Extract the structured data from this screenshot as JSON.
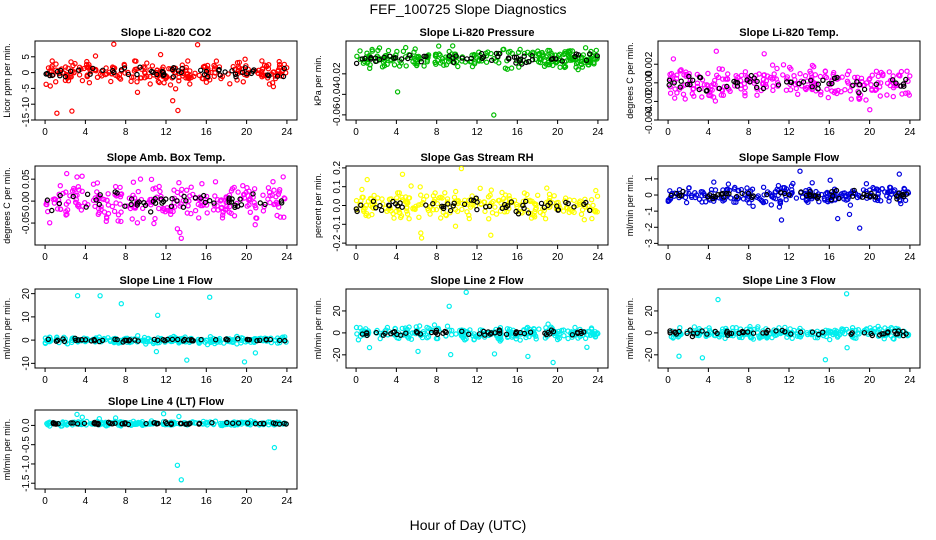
{
  "page_title": "FEF_100725  Slope Diagnostics",
  "x_axis_title": "Hour of Day (UTC)",
  "chart_data": [
    {
      "type": "scatter",
      "title": "Slope Li-820 CO2",
      "ylabel": "Licor ppm per min.",
      "xlim": [
        -1,
        25
      ],
      "ylim": [
        -15,
        10
      ],
      "xticks": [
        0,
        4,
        8,
        12,
        16,
        20,
        24
      ],
      "yticks": [
        5,
        0,
        -5,
        -10,
        -15
      ],
      "yticklabels": [
        "5",
        "0",
        "-5",
        "-10",
        "-15"
      ],
      "colors": [
        "#ff0000",
        "#000000"
      ],
      "summary": {
        "center": 0,
        "spread": 2.5,
        "extremes": [
          -13,
          9
        ]
      }
    },
    {
      "type": "scatter",
      "title": "Slope Li-820 Pressure",
      "ylabel": "kPa per min.",
      "xlim": [
        -1,
        25
      ],
      "ylim": [
        -0.065,
        0.012
      ],
      "xticks": [
        0,
        4,
        8,
        12,
        16,
        20,
        24
      ],
      "yticks": [
        -0.02,
        -0.04,
        -0.06
      ],
      "yticklabels": [
        "-0.02",
        "-0.04",
        "-0.06"
      ],
      "colors": [
        "#00bb00",
        "#000000"
      ],
      "summary": {
        "center": -0.005,
        "spread": 0.007,
        "extremes": [
          -0.058,
          0.008
        ]
      }
    },
    {
      "type": "scatter",
      "title": "Slope Li-820 Temp.",
      "ylabel": "degrees C per min.",
      "xlim": [
        -1,
        25
      ],
      "ylim": [
        -0.004,
        0.0045
      ],
      "xticks": [
        0,
        4,
        8,
        12,
        16,
        20,
        24
      ],
      "yticks": [
        0.002,
        0,
        -0.002,
        -0.004
      ],
      "yticklabels": [
        "0.002",
        "0.000",
        "-0.002",
        "-0.004"
      ],
      "colors": [
        "#ff00ff",
        "#000000"
      ],
      "summary": {
        "center": 0,
        "spread": 0.0012,
        "extremes": [
          -0.0035,
          0.0035
        ]
      }
    },
    {
      "type": "scatter",
      "title": "Slope Amb. Box Temp.",
      "ylabel": "degrees C per min.",
      "xlim": [
        -1,
        25
      ],
      "ylim": [
        -0.1,
        0.08
      ],
      "xticks": [
        0,
        4,
        8,
        12,
        16,
        20,
        24
      ],
      "yticks": [
        0.05,
        0,
        -0.05
      ],
      "yticklabels": [
        "0.05",
        "0.00",
        "-0.05"
      ],
      "colors": [
        "#ff00ff",
        "#000000"
      ],
      "summary": {
        "center": 0,
        "spread": 0.03,
        "extremes": [
          -0.09,
          0.07
        ]
      }
    },
    {
      "type": "scatter",
      "title": "Slope Gas Stream RH",
      "ylabel": "percent per min.",
      "xlim": [
        -1,
        25
      ],
      "ylim": [
        -0.21,
        0.21
      ],
      "xticks": [
        0,
        4,
        8,
        12,
        16,
        20,
        24
      ],
      "yticks": [
        0.2,
        0.1,
        0,
        -0.1,
        -0.2
      ],
      "yticklabels": [
        "0.2",
        "0.1",
        "0.0",
        "-0.1",
        "-0.2"
      ],
      "colors": [
        "#ffff00",
        "#000000"
      ],
      "summary": {
        "center": 0,
        "spread": 0.05,
        "extremes": [
          -0.2,
          0.2
        ]
      }
    },
    {
      "type": "scatter",
      "title": "Slope Sample Flow",
      "ylabel": "ml/min per min.",
      "xlim": [
        -1,
        25
      ],
      "ylim": [
        -3.1,
        1.8
      ],
      "xticks": [
        0,
        4,
        8,
        12,
        16,
        20,
        24
      ],
      "yticks": [
        1,
        0,
        -1,
        -2,
        -3
      ],
      "yticklabels": [
        "1",
        "0",
        "-1",
        "-2",
        "-3"
      ],
      "colors": [
        "#0000dd",
        "#000000"
      ],
      "summary": {
        "center": 0,
        "spread": 0.4,
        "extremes": [
          -3,
          1.5
        ]
      }
    },
    {
      "type": "scatter",
      "title": "Slope Line 1 Flow",
      "ylabel": "ml/min per min.",
      "xlim": [
        -1,
        25
      ],
      "ylim": [
        -12,
        22
      ],
      "xticks": [
        0,
        4,
        8,
        12,
        16,
        20,
        24
      ],
      "yticks": [
        20,
        10,
        0,
        -10
      ],
      "yticklabels": [
        "20",
        "10",
        "0",
        "-10"
      ],
      "colors": [
        "#00eeee",
        "#000000"
      ],
      "summary": {
        "center": 0,
        "spread": 1,
        "extremes": [
          -10,
          20
        ]
      }
    },
    {
      "type": "scatter",
      "title": "Slope Line 2 Flow",
      "ylabel": "ml/min per min.",
      "xlim": [
        -1,
        25
      ],
      "ylim": [
        -32,
        40
      ],
      "xticks": [
        0,
        4,
        8,
        12,
        16,
        20,
        24
      ],
      "yticks": [
        20,
        0,
        -20
      ],
      "yticklabels": [
        "20",
        "0",
        "-20"
      ],
      "colors": [
        "#00eeee",
        "#000000"
      ],
      "summary": {
        "center": 0,
        "spread": 4,
        "extremes": [
          -30,
          38
        ]
      }
    },
    {
      "type": "scatter",
      "title": "Slope Line 3 Flow",
      "ylabel": "ml/min per min.",
      "xlim": [
        -1,
        25
      ],
      "ylim": [
        -32,
        40
      ],
      "xticks": [
        0,
        4,
        8,
        12,
        16,
        20,
        24
      ],
      "yticks": [
        20,
        0,
        -20
      ],
      "yticklabels": [
        "20",
        "0",
        "-20"
      ],
      "colors": [
        "#00eeee",
        "#000000"
      ],
      "summary": {
        "center": 0,
        "spread": 4,
        "extremes": [
          -28,
          38
        ]
      }
    },
    {
      "type": "scatter",
      "title": "Slope Line 4 (LT) Flow",
      "ylabel": "ml/min per min.",
      "xlim": [
        -1,
        25
      ],
      "ylim": [
        -1.65,
        0.4
      ],
      "xticks": [
        0,
        4,
        8,
        12,
        16,
        20,
        24
      ],
      "yticks": [
        0,
        -0.5,
        -1,
        -1.5
      ],
      "yticklabels": [
        "0.0",
        "-0.5",
        "-1.0",
        "-1.5"
      ],
      "colors": [
        "#00eeee",
        "#000000"
      ],
      "summary": {
        "center": 0.05,
        "spread": 0.04,
        "extremes": [
          -1.55,
          0.3
        ]
      }
    }
  ]
}
